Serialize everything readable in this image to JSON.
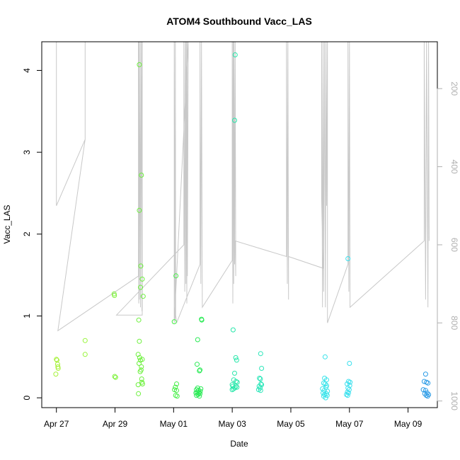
{
  "chart_data": {
    "type": "scatter",
    "title": "ATOM4 Southbound Vacc_LAS",
    "xlabel": "Date",
    "ylabel": "Vacc_LAS",
    "x_tick_labels": [
      "Apr 27",
      "Apr 29",
      "May 01",
      "May 03",
      "May 05",
      "May 07",
      "May 09"
    ],
    "x_tick_days": [
      0,
      2,
      4,
      6,
      8,
      10,
      12
    ],
    "xlim_days": [
      -0.5,
      13.0
    ],
    "ylim": [
      -0.12,
      4.35
    ],
    "y_ticks": [
      0,
      1,
      2,
      3,
      4
    ],
    "y_tick_labels": [
      "0",
      "1",
      "2",
      "3",
      "4"
    ],
    "y2_ticks": [
      200,
      400,
      600,
      800,
      1000
    ],
    "y2_tick_labels": [
      "200",
      "400",
      "600",
      "800",
      "1000"
    ],
    "y2lim_reversed": [
      1017,
      80
    ],
    "grid": false,
    "legend": "none",
    "point_color_scale": "time (green to blue)",
    "points": [
      {
        "x": 0.0,
        "y": 0.47,
        "c": "#a6f23a"
      },
      {
        "x": 0.02,
        "y": 0.46,
        "c": "#a6f23a"
      },
      {
        "x": 0.04,
        "y": 0.41,
        "c": "#a6f23a"
      },
      {
        "x": 0.05,
        "y": 0.38,
        "c": "#a6f23a"
      },
      {
        "x": -0.02,
        "y": 0.29,
        "c": "#a6f23a"
      },
      {
        "x": 0.06,
        "y": 0.36,
        "c": "#a6f23a"
      },
      {
        "x": 0.98,
        "y": 0.7,
        "c": "#98f53a"
      },
      {
        "x": 0.98,
        "y": 0.53,
        "c": "#98f53a"
      },
      {
        "x": 1.97,
        "y": 1.27,
        "c": "#7df23a"
      },
      {
        "x": 1.98,
        "y": 1.25,
        "c": "#7df23a"
      },
      {
        "x": 1.99,
        "y": 0.26,
        "c": "#7df23a"
      },
      {
        "x": 2.02,
        "y": 0.25,
        "c": "#7df23a"
      },
      {
        "x": 2.83,
        "y": 4.07,
        "c": "#6cf03c"
      },
      {
        "x": 2.83,
        "y": 2.29,
        "c": "#6cf03c"
      },
      {
        "x": 2.9,
        "y": 2.72,
        "c": "#6cf03c"
      },
      {
        "x": 2.88,
        "y": 1.61,
        "c": "#6cf03c"
      },
      {
        "x": 2.93,
        "y": 1.45,
        "c": "#6cf03c"
      },
      {
        "x": 2.87,
        "y": 1.35,
        "c": "#6cf03c"
      },
      {
        "x": 2.96,
        "y": 1.24,
        "c": "#6cf03c"
      },
      {
        "x": 2.81,
        "y": 0.95,
        "c": "#6cf03c"
      },
      {
        "x": 2.83,
        "y": 0.69,
        "c": "#6cf03c"
      },
      {
        "x": 2.79,
        "y": 0.53,
        "c": "#6cf03c"
      },
      {
        "x": 2.84,
        "y": 0.49,
        "c": "#6cf03c"
      },
      {
        "x": 2.93,
        "y": 0.47,
        "c": "#6cf03c"
      },
      {
        "x": 2.87,
        "y": 0.46,
        "c": "#6cf03c"
      },
      {
        "x": 2.82,
        "y": 0.42,
        "c": "#6cf03c"
      },
      {
        "x": 2.9,
        "y": 0.38,
        "c": "#6cf03c"
      },
      {
        "x": 2.89,
        "y": 0.34,
        "c": "#6cf03c"
      },
      {
        "x": 2.86,
        "y": 0.32,
        "c": "#6cf03c"
      },
      {
        "x": 2.92,
        "y": 0.19,
        "c": "#6cf03c"
      },
      {
        "x": 2.94,
        "y": 0.17,
        "c": "#6cf03c"
      },
      {
        "x": 2.79,
        "y": 0.16,
        "c": "#6cf03c"
      },
      {
        "x": 2.8,
        "y": 0.05,
        "c": "#6cf03c"
      },
      {
        "x": 2.91,
        "y": 0.23,
        "c": "#6cf03c"
      },
      {
        "x": 4.08,
        "y": 1.49,
        "c": "#47ef48"
      },
      {
        "x": 4.02,
        "y": 0.93,
        "c": "#47ef48"
      },
      {
        "x": 4.1,
        "y": 0.17,
        "c": "#47ef48"
      },
      {
        "x": 4.06,
        "y": 0.13,
        "c": "#47ef48"
      },
      {
        "x": 4.03,
        "y": 0.1,
        "c": "#47ef48"
      },
      {
        "x": 4.1,
        "y": 0.09,
        "c": "#47ef48"
      },
      {
        "x": 4.07,
        "y": 0.03,
        "c": "#47ef48"
      },
      {
        "x": 4.12,
        "y": 0.02,
        "c": "#47ef48"
      },
      {
        "x": 4.95,
        "y": 0.96,
        "c": "#2aea55"
      },
      {
        "x": 4.96,
        "y": 0.95,
        "c": "#2aea55"
      },
      {
        "x": 4.82,
        "y": 0.71,
        "c": "#2aea55"
      },
      {
        "x": 4.8,
        "y": 0.41,
        "c": "#2aea55"
      },
      {
        "x": 4.88,
        "y": 0.33,
        "c": "#2aea55"
      },
      {
        "x": 4.9,
        "y": 0.34,
        "c": "#2aea55"
      },
      {
        "x": 4.82,
        "y": 0.12,
        "c": "#2aea55"
      },
      {
        "x": 4.78,
        "y": 0.1,
        "c": "#2aea55"
      },
      {
        "x": 4.85,
        "y": 0.09,
        "c": "#2aea55"
      },
      {
        "x": 4.93,
        "y": 0.11,
        "c": "#2aea55"
      },
      {
        "x": 4.8,
        "y": 0.07,
        "c": "#2aea55"
      },
      {
        "x": 4.86,
        "y": 0.06,
        "c": "#2aea55"
      },
      {
        "x": 4.9,
        "y": 0.05,
        "c": "#2aea55"
      },
      {
        "x": 4.83,
        "y": 0.04,
        "c": "#2aea55"
      },
      {
        "x": 4.78,
        "y": 0.03,
        "c": "#2aea55"
      },
      {
        "x": 4.88,
        "y": 0.02,
        "c": "#2aea55"
      },
      {
        "x": 4.91,
        "y": 0.08,
        "c": "#2aea55"
      },
      {
        "x": 4.76,
        "y": 0.06,
        "c": "#2aea55"
      },
      {
        "x": 6.1,
        "y": 4.19,
        "c": "#28e7aa"
      },
      {
        "x": 6.08,
        "y": 3.39,
        "c": "#28e7aa"
      },
      {
        "x": 6.03,
        "y": 0.83,
        "c": "#28e7aa"
      },
      {
        "x": 6.12,
        "y": 0.49,
        "c": "#28e7aa"
      },
      {
        "x": 6.15,
        "y": 0.46,
        "c": "#28e7aa"
      },
      {
        "x": 6.08,
        "y": 0.3,
        "c": "#28e7aa"
      },
      {
        "x": 6.05,
        "y": 0.22,
        "c": "#28e7aa"
      },
      {
        "x": 6.13,
        "y": 0.2,
        "c": "#28e7aa"
      },
      {
        "x": 6.17,
        "y": 0.19,
        "c": "#28e7aa"
      },
      {
        "x": 6.0,
        "y": 0.16,
        "c": "#28e7aa"
      },
      {
        "x": 6.02,
        "y": 0.14,
        "c": "#28e7aa"
      },
      {
        "x": 6.12,
        "y": 0.14,
        "c": "#28e7aa"
      },
      {
        "x": 6.16,
        "y": 0.13,
        "c": "#28e7aa"
      },
      {
        "x": 6.04,
        "y": 0.11,
        "c": "#28e7aa"
      },
      {
        "x": 6.09,
        "y": 0.12,
        "c": "#28e7aa"
      },
      {
        "x": 6.0,
        "y": 0.1,
        "c": "#28e7aa"
      },
      {
        "x": 6.97,
        "y": 0.54,
        "c": "#2ce6b9"
      },
      {
        "x": 7.0,
        "y": 0.36,
        "c": "#2ce6b9"
      },
      {
        "x": 6.93,
        "y": 0.24,
        "c": "#2ce6b9"
      },
      {
        "x": 6.96,
        "y": 0.23,
        "c": "#2ce6b9"
      },
      {
        "x": 6.98,
        "y": 0.17,
        "c": "#2ce6b9"
      },
      {
        "x": 7.0,
        "y": 0.16,
        "c": "#2ce6b9"
      },
      {
        "x": 6.92,
        "y": 0.14,
        "c": "#2ce6b9"
      },
      {
        "x": 6.95,
        "y": 0.12,
        "c": "#2ce6b9"
      },
      {
        "x": 6.9,
        "y": 0.1,
        "c": "#2ce6b9"
      },
      {
        "x": 6.97,
        "y": 0.09,
        "c": "#2ce6b9"
      },
      {
        "x": 9.17,
        "y": 0.5,
        "c": "#36e3ea"
      },
      {
        "x": 9.15,
        "y": 0.24,
        "c": "#36e3ea"
      },
      {
        "x": 9.22,
        "y": 0.22,
        "c": "#36e3ea"
      },
      {
        "x": 9.12,
        "y": 0.18,
        "c": "#36e3ea"
      },
      {
        "x": 9.17,
        "y": 0.17,
        "c": "#36e3ea"
      },
      {
        "x": 9.2,
        "y": 0.13,
        "c": "#36e3ea"
      },
      {
        "x": 9.08,
        "y": 0.11,
        "c": "#36e3ea"
      },
      {
        "x": 9.14,
        "y": 0.09,
        "c": "#36e3ea"
      },
      {
        "x": 9.25,
        "y": 0.08,
        "c": "#36e3ea"
      },
      {
        "x": 9.1,
        "y": 0.06,
        "c": "#36e3ea"
      },
      {
        "x": 9.21,
        "y": 0.05,
        "c": "#36e3ea"
      },
      {
        "x": 9.15,
        "y": 0.04,
        "c": "#36e3ea"
      },
      {
        "x": 9.24,
        "y": 0.03,
        "c": "#36e3ea"
      },
      {
        "x": 9.12,
        "y": 0.02,
        "c": "#36e3ea"
      },
      {
        "x": 9.19,
        "y": 0.0,
        "c": "#36e3ea"
      },
      {
        "x": 9.22,
        "y": 0.15,
        "c": "#36e3ea"
      },
      {
        "x": 9.95,
        "y": 1.7,
        "c": "#39e0ee"
      },
      {
        "x": 10.0,
        "y": 0.42,
        "c": "#39e0ee"
      },
      {
        "x": 9.97,
        "y": 0.2,
        "c": "#39e0ee"
      },
      {
        "x": 10.02,
        "y": 0.19,
        "c": "#39e0ee"
      },
      {
        "x": 9.92,
        "y": 0.17,
        "c": "#39e0ee"
      },
      {
        "x": 10.01,
        "y": 0.15,
        "c": "#39e0ee"
      },
      {
        "x": 9.95,
        "y": 0.12,
        "c": "#39e0ee"
      },
      {
        "x": 9.99,
        "y": 0.1,
        "c": "#39e0ee"
      },
      {
        "x": 9.93,
        "y": 0.07,
        "c": "#39e0ee"
      },
      {
        "x": 9.97,
        "y": 0.06,
        "c": "#39e0ee"
      },
      {
        "x": 9.9,
        "y": 0.04,
        "c": "#39e0ee"
      },
      {
        "x": 9.94,
        "y": 0.03,
        "c": "#39e0ee"
      },
      {
        "x": 12.6,
        "y": 0.29,
        "c": "#2b9be6"
      },
      {
        "x": 12.55,
        "y": 0.2,
        "c": "#2b9be6"
      },
      {
        "x": 12.63,
        "y": 0.19,
        "c": "#2b9be6"
      },
      {
        "x": 12.68,
        "y": 0.18,
        "c": "#2b9be6"
      },
      {
        "x": 12.52,
        "y": 0.1,
        "c": "#2b9be6"
      },
      {
        "x": 12.6,
        "y": 0.09,
        "c": "#2b9be6"
      },
      {
        "x": 12.65,
        "y": 0.06,
        "c": "#2b9be6"
      },
      {
        "x": 12.57,
        "y": 0.05,
        "c": "#2b9be6"
      },
      {
        "x": 12.7,
        "y": 0.04,
        "c": "#2b9be6"
      },
      {
        "x": 12.62,
        "y": 0.03,
        "c": "#2b9be6"
      },
      {
        "x": 12.67,
        "y": 0.02,
        "c": "#2b9be6"
      }
    ],
    "pressure_trace": [
      [
        0.0,
        500
      ],
      [
        0.0,
        80
      ],
      [
        0.0,
        500
      ],
      [
        0.98,
        330
      ],
      [
        0.98,
        80
      ],
      [
        0.98,
        330
      ],
      [
        0.05,
        820
      ],
      [
        2.8,
        680
      ],
      [
        2.8,
        80
      ],
      [
        2.81,
        750
      ],
      [
        2.82,
        80
      ],
      [
        2.83,
        740
      ],
      [
        2.86,
        80
      ],
      [
        2.87,
        760
      ],
      [
        2.9,
        80
      ],
      [
        2.92,
        770
      ],
      [
        2.93,
        80
      ],
      [
        2.93,
        780
      ],
      [
        2.05,
        780
      ],
      [
        4.35,
        600
      ],
      [
        4.35,
        80
      ],
      [
        4.38,
        720
      ],
      [
        4.4,
        80
      ],
      [
        4.42,
        700
      ],
      [
        4.43,
        80
      ],
      [
        4.45,
        750
      ],
      [
        4.46,
        80
      ],
      [
        4.47,
        680
      ],
      [
        4.5,
        80
      ],
      [
        4.02,
        800
      ],
      [
        4.02,
        80
      ],
      [
        4.05,
        790
      ],
      [
        4.06,
        80
      ],
      [
        4.07,
        780
      ],
      [
        4.1,
        800
      ],
      [
        4.9,
        650
      ],
      [
        4.9,
        80
      ],
      [
        4.93,
        700
      ],
      [
        4.95,
        80
      ],
      [
        4.98,
        760
      ],
      [
        6.0,
        640
      ],
      [
        6.0,
        80
      ],
      [
        6.02,
        750
      ],
      [
        6.03,
        80
      ],
      [
        6.05,
        700
      ],
      [
        6.06,
        80
      ],
      [
        6.08,
        650
      ],
      [
        6.1,
        80
      ],
      [
        6.12,
        680
      ],
      [
        6.1,
        590
      ],
      [
        7.85,
        630
      ],
      [
        7.85,
        80
      ],
      [
        7.88,
        700
      ],
      [
        7.9,
        80
      ],
      [
        7.92,
        740
      ],
      [
        7.92,
        630
      ],
      [
        9.1,
        660
      ],
      [
        9.05,
        480
      ],
      [
        9.05,
        80
      ],
      [
        9.08,
        760
      ],
      [
        9.1,
        80
      ],
      [
        9.12,
        720
      ],
      [
        9.15,
        80
      ],
      [
        9.18,
        760
      ],
      [
        9.2,
        80
      ],
      [
        9.22,
        500
      ],
      [
        9.25,
        80
      ],
      [
        9.25,
        800
      ],
      [
        9.95,
        650
      ],
      [
        9.95,
        80
      ],
      [
        9.98,
        720
      ],
      [
        10.0,
        80
      ],
      [
        10.02,
        740
      ],
      [
        10.02,
        760
      ],
      [
        12.55,
        590
      ],
      [
        12.55,
        80
      ],
      [
        12.6,
        740
      ],
      [
        12.63,
        80
      ],
      [
        12.68,
        760
      ],
      [
        12.7,
        80
      ],
      [
        12.72,
        590
      ]
    ]
  }
}
